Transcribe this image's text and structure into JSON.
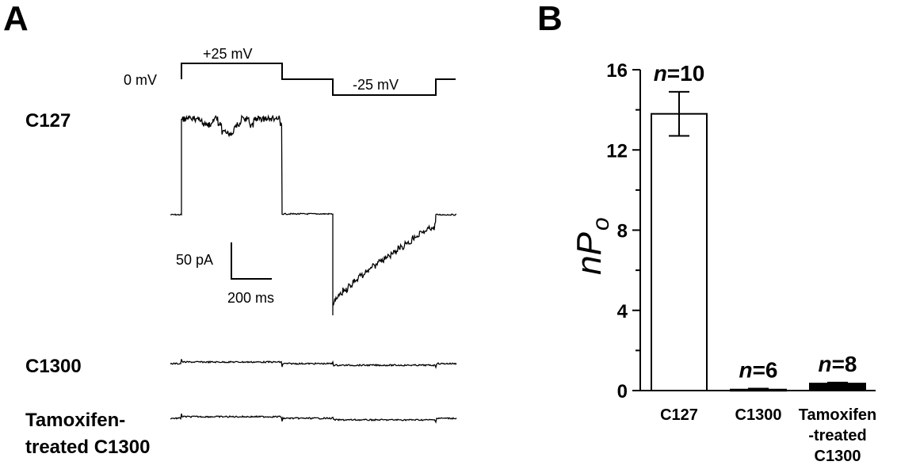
{
  "panel_a": {
    "letter": "A",
    "protocol": {
      "hold_label": "0 mV",
      "step1_label": "+25 mV",
      "step2_label": "-25 mV"
    },
    "traces": [
      {
        "line1": "C127",
        "line2": ""
      },
      {
        "line1": "C1300",
        "line2": ""
      },
      {
        "line1": "Tamoxifen-",
        "line2": "treated C1300"
      }
    ],
    "scale_bar": {
      "current_label": "50 pA",
      "time_label": "200 ms"
    }
  },
  "panel_b": {
    "letter": "B",
    "ylabel_main": "nP",
    "ylabel_sub": "o"
  },
  "chart_data": {
    "type": "bar",
    "categories": [
      {
        "line1": "C127",
        "line2": "",
        "line3": ""
      },
      {
        "line1": "C1300",
        "line2": "",
        "line3": ""
      },
      {
        "line1": "Tamoxifen",
        "line2": "-treated",
        "line3": "C1300"
      }
    ],
    "values": [
      13.8,
      0.05,
      0.35
    ],
    "errors": [
      1.1,
      0.05,
      0.05
    ],
    "n_labels": [
      {
        "prefix": "n",
        "text": "=10"
      },
      {
        "prefix": "n",
        "text": "=6"
      },
      {
        "prefix": "n",
        "text": "=8"
      }
    ],
    "bar_fills": [
      "#ffffff",
      "#ffffff",
      "#000000"
    ],
    "ylim": [
      0,
      16
    ],
    "yticks": [
      "0",
      "4",
      "8",
      "12",
      "16"
    ],
    "grid": false
  }
}
